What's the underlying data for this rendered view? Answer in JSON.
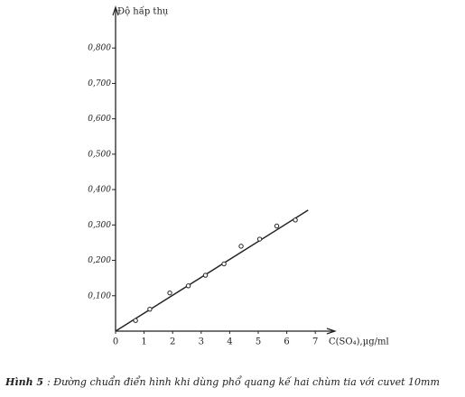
{
  "chart_data": {
    "type": "scatter",
    "y_label": "Độ hấp thụ",
    "x_label": "C(SO₄),µg/ml",
    "caption_label": "Hình 5",
    "caption": ": Đường chuẩn điển hình khi dùng phổ quang kế hai chùm tia với cuvet 10mm",
    "xlim": [
      0,
      7.5
    ],
    "ylim": [
      0,
      0.9
    ],
    "xticks": [
      0,
      1,
      2,
      3,
      4,
      5,
      6,
      7
    ],
    "yticks": [
      {
        "value": 0.1,
        "label": "0,100"
      },
      {
        "value": 0.2,
        "label": "0,200"
      },
      {
        "value": 0.3,
        "label": "0,300"
      },
      {
        "value": 0.4,
        "label": "0,400"
      },
      {
        "value": 0.5,
        "label": "0,500"
      },
      {
        "value": 0.6,
        "label": "0,600"
      },
      {
        "value": 0.7,
        "label": "0,700"
      },
      {
        "value": 0.8,
        "label": "0,800"
      }
    ],
    "grid": false,
    "color": "#222222",
    "points": {
      "x": [
        0.7,
        1.2,
        1.9,
        2.55,
        3.15,
        3.8,
        4.4,
        5.05,
        5.65,
        6.3
      ],
      "values": [
        0.03,
        0.062,
        0.108,
        0.128,
        0.158,
        0.19,
        0.24,
        0.26,
        0.297,
        0.314
      ]
    },
    "fit_line": {
      "x": [
        0,
        6.75
      ],
      "values": [
        0,
        0.342
      ]
    }
  }
}
